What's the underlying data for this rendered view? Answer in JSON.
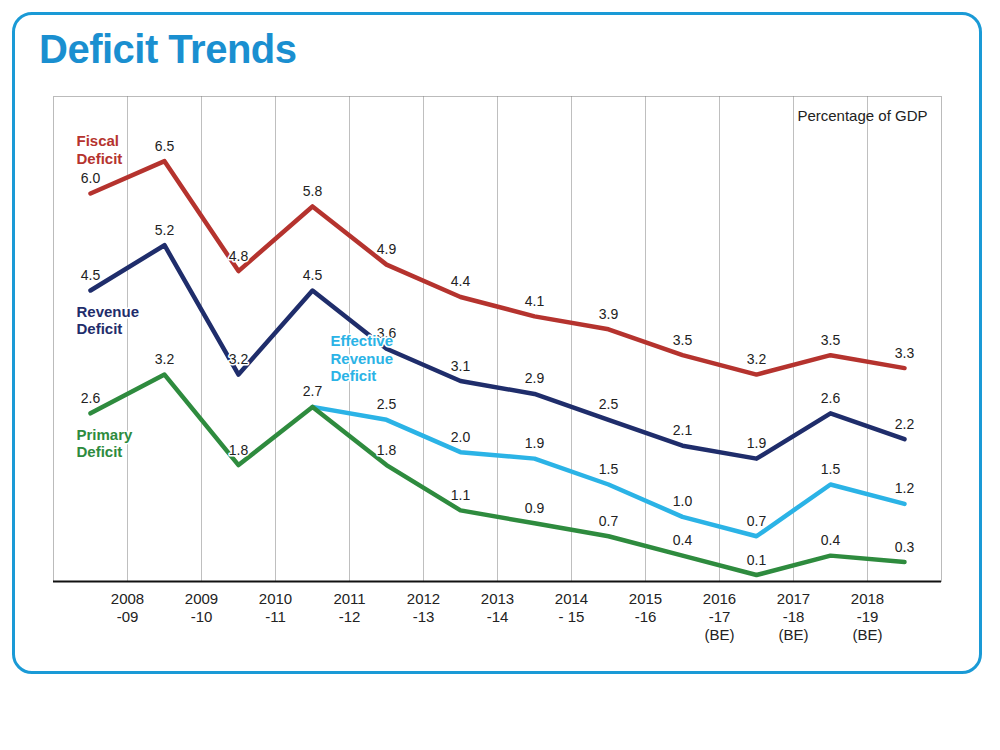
{
  "chart_data": {
    "type": "line",
    "title": "Deficit Trends",
    "ylabel": "Percentage of GDP",
    "categories": [
      "2008\n-09",
      "2009\n-10",
      "2010\n-11",
      "2011\n-12",
      "2012\n-13",
      "2013\n-14",
      "2014\n- 15",
      "2015\n-16",
      "2016\n-17\n(BE)",
      "2017\n-18\n(BE)",
      "2018\n-19\n(BE)",
      null
    ],
    "series": [
      {
        "name": "Fiscal\nDeficit",
        "color": "#b5332e",
        "values": [
          6.0,
          6.5,
          4.8,
          5.8,
          4.9,
          4.4,
          4.1,
          3.9,
          3.5,
          3.2,
          3.5,
          3.3
        ],
        "value_labels": [
          "6.0",
          "6.5",
          "4.8",
          "5.8",
          "4.9",
          "4.4",
          "4.1",
          "3.9",
          "3.5",
          "3.2",
          "3.5",
          "3.3"
        ]
      },
      {
        "name": "Revenue\nDeficit",
        "color": "#1f2d6b",
        "values": [
          4.5,
          5.2,
          3.2,
          4.5,
          3.6,
          3.1,
          2.9,
          2.5,
          2.1,
          1.9,
          2.6,
          2.2
        ],
        "value_labels": [
          "4.5",
          "5.2",
          "3.2",
          "4.5",
          "3.6",
          "3.1",
          "2.9",
          "2.5",
          "2.1",
          "1.9",
          "2.6",
          "2.2"
        ]
      },
      {
        "name": "Effective\nRevenue\nDeficit",
        "color": "#2bb3e6",
        "values": [
          null,
          null,
          null,
          2.7,
          2.5,
          2.0,
          1.9,
          1.5,
          1.0,
          0.7,
          1.5,
          1.2
        ],
        "value_labels": [
          null,
          null,
          null,
          null,
          "2.5",
          "2.0",
          "1.9",
          "1.5",
          "1.0",
          "0.7",
          "1.5",
          "1.2"
        ]
      },
      {
        "name": "Primary\nDeficit",
        "color": "#2e8b3e",
        "values": [
          2.6,
          3.2,
          1.8,
          2.7,
          1.8,
          1.1,
          0.9,
          0.7,
          0.4,
          0.1,
          0.4,
          0.3
        ],
        "value_labels": [
          "2.6",
          "3.2",
          "1.8",
          "2.7",
          "1.8",
          "1.1",
          "0.9",
          "0.7",
          "0.4",
          "0.1",
          "0.4",
          "0.3"
        ]
      }
    ],
    "ylim": [
      0,
      7.5
    ],
    "yticks": [],
    "grid": true,
    "data_labels": true,
    "tick_labels": "x"
  }
}
